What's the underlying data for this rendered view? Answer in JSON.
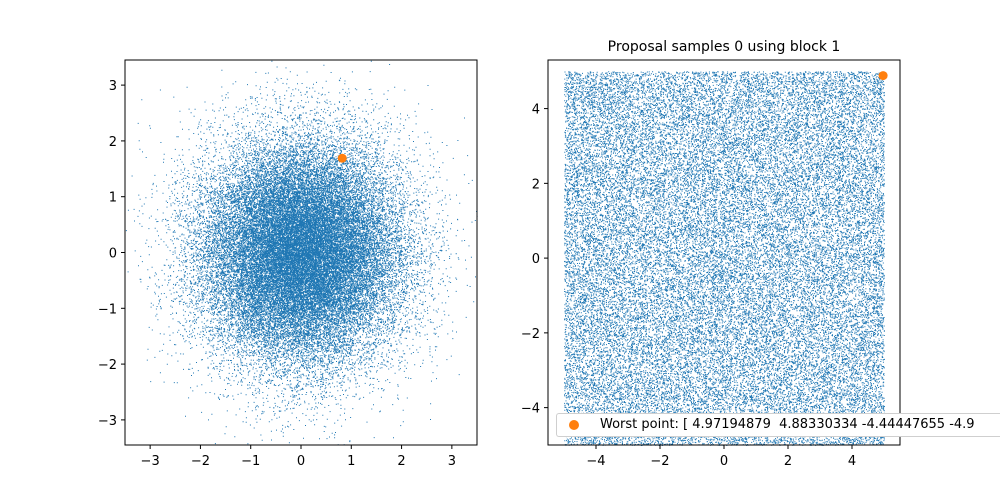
{
  "colors": {
    "samples": "#1f77b4",
    "worst": "#ff7f0e",
    "axes": "#000000"
  },
  "chart_data": [
    {
      "type": "scatter",
      "title": "",
      "xlabel": "",
      "ylabel": "",
      "xlim": [
        -3.5,
        3.5
      ],
      "ylim": [
        -3.45,
        3.45
      ],
      "xticks": [
        -3,
        -2,
        -1,
        0,
        1,
        2,
        3
      ],
      "yticks": [
        -3,
        -2,
        -1,
        0,
        1,
        2,
        3
      ],
      "grid": false,
      "series": [
        {
          "distribution": "standard-normal-2d",
          "count": 40000,
          "std": 1.0,
          "marker": "pixel"
        },
        {
          "points": [
            [
              0.82,
              1.69
            ]
          ],
          "marker": "circle"
        }
      ]
    },
    {
      "type": "scatter",
      "title": "Proposal samples 0 using block 1",
      "xlabel": "",
      "ylabel": "",
      "xlim": [
        -5.5,
        5.5
      ],
      "ylim": [
        -5.0,
        5.3
      ],
      "xticks": [
        -4,
        -2,
        0,
        2,
        4
      ],
      "yticks": [
        -4,
        -2,
        0,
        2,
        4
      ],
      "grid": false,
      "series": [
        {
          "distribution": "uniform-2d",
          "count": 40000,
          "range": [
            -5,
            5
          ],
          "marker": "pixel"
        },
        {
          "points": [
            [
              4.97194879,
              4.88330334
            ]
          ],
          "marker": "circle"
        }
      ],
      "legend": {
        "position": "lower-right",
        "entries": [
          "Worst point: [ 4.97194879  4.88330334 -4.44447655 -4.9"
        ]
      }
    }
  ]
}
